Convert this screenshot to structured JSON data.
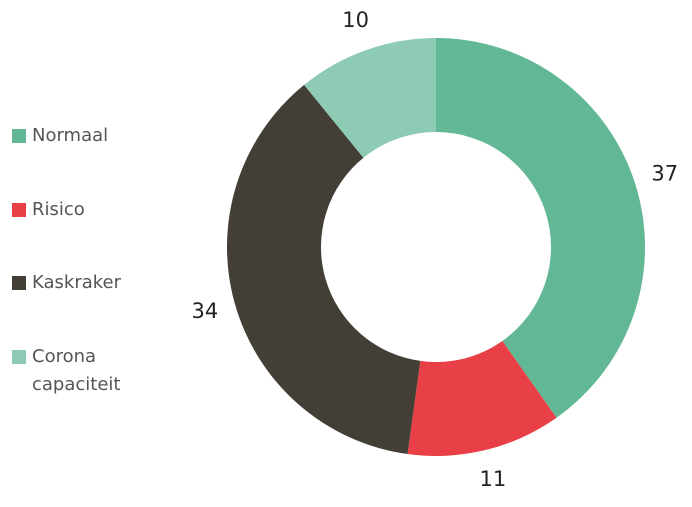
{
  "chart_data": {
    "type": "donut",
    "categories": [
      "Normaal",
      "Risico",
      "Kaskraker",
      "Corona capaciteit"
    ],
    "values": [
      37,
      11,
      34,
      10
    ],
    "colors": [
      "#62b795",
      "#e84046",
      "#433f37",
      "#8ecbb5"
    ]
  }
}
